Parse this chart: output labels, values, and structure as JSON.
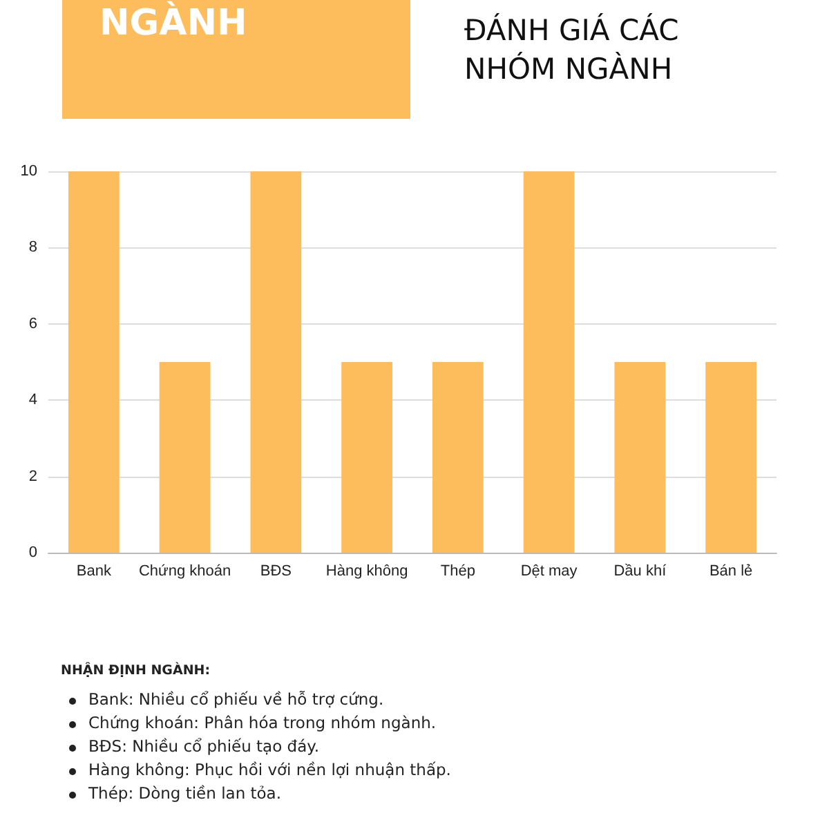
{
  "chart_data": {
    "type": "bar",
    "title": "ĐÁNH GIÁ CÁC NHÓM NGÀNH",
    "categories": [
      "Bank",
      "Chứng khoán",
      "BĐS",
      "Hàng không",
      "Thép",
      "Dệt may",
      "Dầu khí",
      "Bán lẻ"
    ],
    "values": [
      10,
      5,
      10,
      5,
      5,
      10,
      5,
      5
    ],
    "color": "#fdbd5c",
    "ylim": [
      0,
      10
    ],
    "yticks": [
      0,
      2,
      4,
      6,
      8,
      10
    ],
    "grid": "y",
    "annotations": [
      "NGÀNH",
      "NHẬN ĐỊNH NGÀNH:",
      "Bank: Nhiều cổ phiếu về hỗ trợ cứng.",
      "Chứng khoán: Phân hóa trong nhóm ngành.",
      "BĐS: Nhiều cổ phiếu tạo đáy.",
      "Hàng không: Phục hồi với nền lợi nhuận thấp.",
      "Thép: Dòng tiền lan tỏa."
    ]
  }
}
